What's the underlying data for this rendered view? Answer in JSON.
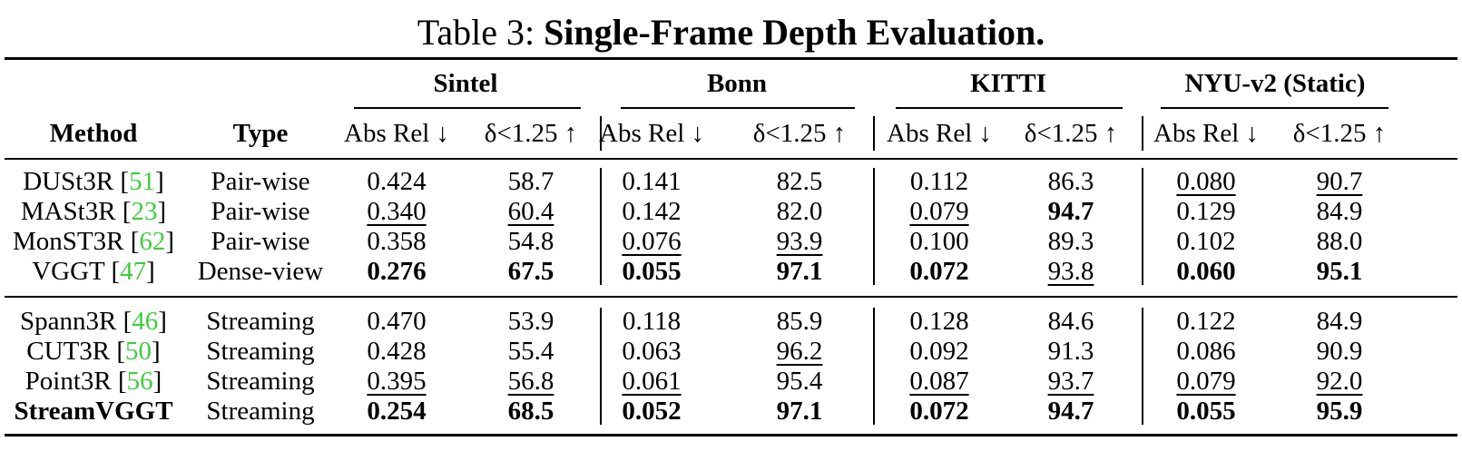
{
  "caption": {
    "prefix": "Table 3:",
    "title": "Single-Frame Depth Evaluation."
  },
  "headers": {
    "method": "Method",
    "type": "Type",
    "datasets": [
      "Sintel",
      "Bonn",
      "KITTI",
      "NYU-v2 (Static)"
    ],
    "metrics": [
      "Abs Rel ↓",
      "δ<1.25 ↑"
    ]
  },
  "groups": [
    {
      "rows": [
        {
          "name": "DUSt3R",
          "ref": "51",
          "type": "Pair-wise",
          "values": [
            "0.424",
            "58.7",
            "0.141",
            "82.5",
            "0.112",
            "86.3",
            "0.080",
            "90.7"
          ],
          "bold": [
            0,
            0,
            0,
            0,
            0,
            0,
            0,
            0
          ],
          "underline": [
            0,
            0,
            0,
            0,
            0,
            0,
            1,
            1
          ]
        },
        {
          "name": "MASt3R",
          "ref": "23",
          "type": "Pair-wise",
          "values": [
            "0.340",
            "60.4",
            "0.142",
            "82.0",
            "0.079",
            "94.7",
            "0.129",
            "84.9"
          ],
          "bold": [
            0,
            0,
            0,
            0,
            0,
            1,
            0,
            0
          ],
          "underline": [
            1,
            1,
            0,
            0,
            1,
            0,
            0,
            0
          ]
        },
        {
          "name": "MonST3R",
          "ref": "62",
          "type": "Pair-wise",
          "values": [
            "0.358",
            "54.8",
            "0.076",
            "93.9",
            "0.100",
            "89.3",
            "0.102",
            "88.0"
          ],
          "bold": [
            0,
            0,
            0,
            0,
            0,
            0,
            0,
            0
          ],
          "underline": [
            0,
            0,
            1,
            1,
            0,
            0,
            0,
            0
          ]
        },
        {
          "name": "VGGT",
          "ref": "47",
          "type": "Dense-view",
          "values": [
            "0.276",
            "67.5",
            "0.055",
            "97.1",
            "0.072",
            "93.8",
            "0.060",
            "95.1"
          ],
          "bold": [
            1,
            1,
            1,
            1,
            1,
            0,
            1,
            1
          ],
          "underline": [
            0,
            0,
            0,
            0,
            0,
            1,
            0,
            0
          ]
        }
      ]
    },
    {
      "rows": [
        {
          "name": "Spann3R",
          "ref": "46",
          "type": "Streaming",
          "values": [
            "0.470",
            "53.9",
            "0.118",
            "85.9",
            "0.128",
            "84.6",
            "0.122",
            "84.9"
          ],
          "bold": [
            0,
            0,
            0,
            0,
            0,
            0,
            0,
            0
          ],
          "underline": [
            0,
            0,
            0,
            0,
            0,
            0,
            0,
            0
          ]
        },
        {
          "name": "CUT3R",
          "ref": "50",
          "type": "Streaming",
          "values": [
            "0.428",
            "55.4",
            "0.063",
            "96.2",
            "0.092",
            "91.3",
            "0.086",
            "90.9"
          ],
          "bold": [
            0,
            0,
            0,
            0,
            0,
            0,
            0,
            0
          ],
          "underline": [
            0,
            0,
            0,
            1,
            0,
            0,
            0,
            0
          ]
        },
        {
          "name": "Point3R",
          "ref": "56",
          "type": "Streaming",
          "values": [
            "0.395",
            "56.8",
            "0.061",
            "95.4",
            "0.087",
            "93.7",
            "0.079",
            "92.0"
          ],
          "bold": [
            0,
            0,
            0,
            0,
            0,
            0,
            0,
            0
          ],
          "underline": [
            1,
            1,
            1,
            0,
            1,
            1,
            1,
            1
          ]
        },
        {
          "name": "StreamVGGT",
          "ref": "",
          "type": "Streaming",
          "name_bold": true,
          "values": [
            "0.254",
            "68.5",
            "0.052",
            "97.1",
            "0.072",
            "94.7",
            "0.055",
            "95.9"
          ],
          "bold": [
            1,
            1,
            1,
            1,
            1,
            1,
            1,
            1
          ],
          "underline": [
            0,
            0,
            0,
            0,
            0,
            0,
            0,
            0
          ]
        }
      ]
    }
  ]
}
